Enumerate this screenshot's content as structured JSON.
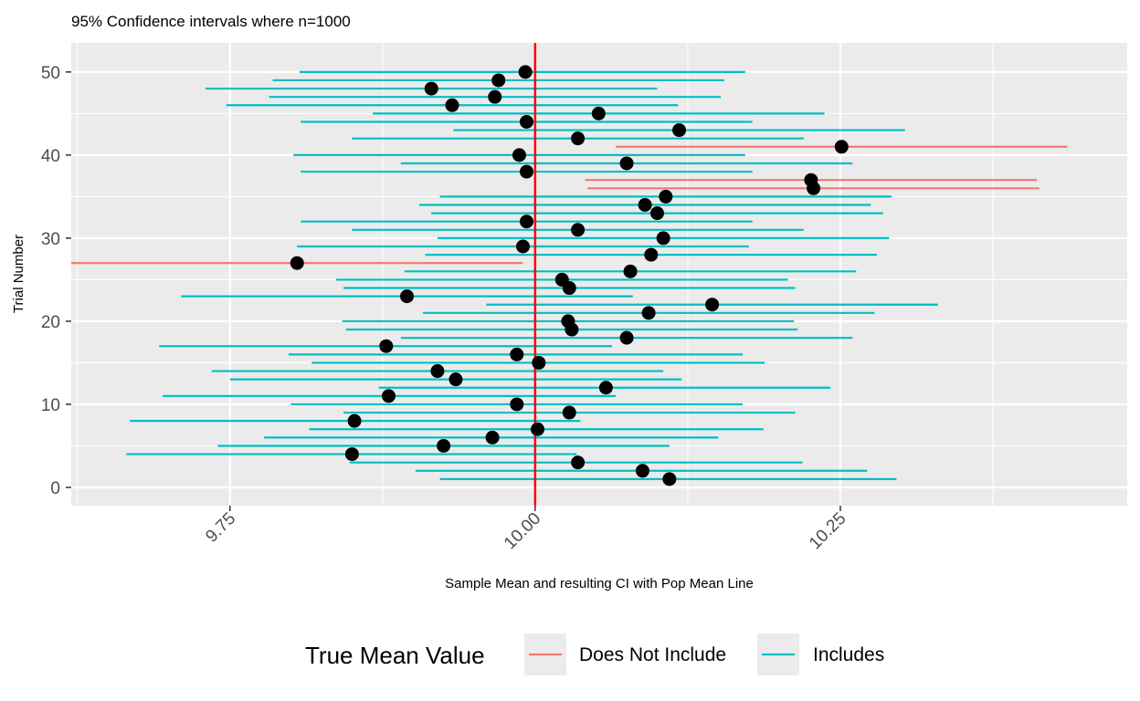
{
  "chart_data": {
    "type": "errorbar-scatter",
    "title": "95% Confidence intervals where n=1000",
    "xlabel": "Sample Mean and resulting CI with Pop Mean Line",
    "ylabel": "Trial Number",
    "xlim": [
      9.62,
      10.485
    ],
    "ylim": [
      -2.2,
      53.5
    ],
    "x_ticks": [
      9.75,
      10.0,
      10.25
    ],
    "x_tick_labels": [
      "9.75",
      "10.00",
      "10.25"
    ],
    "x_minor_ticks": [
      9.625,
      9.875,
      10.125,
      10.375
    ],
    "y_ticks": [
      0,
      10,
      20,
      30,
      40,
      50
    ],
    "y_tick_labels": [
      "0",
      "10",
      "20",
      "30",
      "40",
      "50"
    ],
    "y_minor_ticks": [
      5,
      15,
      25,
      35,
      45
    ],
    "reference_line": {
      "x": 10.0,
      "color": "#ff0000"
    },
    "grid": true,
    "legend": {
      "title": "True Mean Value",
      "position": "bottom",
      "entries": [
        {
          "label": "Does Not Include",
          "color": "#f8766d"
        },
        {
          "label": "Includes",
          "color": "#00bfc4"
        }
      ]
    },
    "series": [
      {
        "trial": 1,
        "mean": 10.11,
        "lower": 9.922,
        "upper": 10.296,
        "includes": true
      },
      {
        "trial": 2,
        "mean": 10.088,
        "lower": 9.902,
        "upper": 10.272,
        "includes": true
      },
      {
        "trial": 3,
        "mean": 10.035,
        "lower": 9.848,
        "upper": 10.219,
        "includes": true
      },
      {
        "trial": 4,
        "mean": 9.85,
        "lower": 9.665,
        "upper": 10.034,
        "includes": true
      },
      {
        "trial": 5,
        "mean": 9.925,
        "lower": 9.74,
        "upper": 10.11,
        "includes": true
      },
      {
        "trial": 6,
        "mean": 9.965,
        "lower": 9.778,
        "upper": 10.15,
        "includes": true
      },
      {
        "trial": 7,
        "mean": 10.002,
        "lower": 9.815,
        "upper": 10.187,
        "includes": true
      },
      {
        "trial": 8,
        "mean": 9.852,
        "lower": 9.668,
        "upper": 10.037,
        "includes": true
      },
      {
        "trial": 9,
        "mean": 10.028,
        "lower": 9.843,
        "upper": 10.213,
        "includes": true
      },
      {
        "trial": 10,
        "mean": 9.985,
        "lower": 9.8,
        "upper": 10.17,
        "includes": true
      },
      {
        "trial": 11,
        "mean": 9.88,
        "lower": 9.695,
        "upper": 10.066,
        "includes": true
      },
      {
        "trial": 12,
        "mean": 10.058,
        "lower": 9.872,
        "upper": 10.242,
        "includes": true
      },
      {
        "trial": 13,
        "mean": 9.935,
        "lower": 9.75,
        "upper": 10.12,
        "includes": true
      },
      {
        "trial": 14,
        "mean": 9.92,
        "lower": 9.735,
        "upper": 10.105,
        "includes": true
      },
      {
        "trial": 15,
        "mean": 10.003,
        "lower": 9.817,
        "upper": 10.188,
        "includes": true
      },
      {
        "trial": 16,
        "mean": 9.985,
        "lower": 9.798,
        "upper": 10.17,
        "includes": true
      },
      {
        "trial": 17,
        "mean": 9.878,
        "lower": 9.692,
        "upper": 10.063,
        "includes": true
      },
      {
        "trial": 18,
        "mean": 10.075,
        "lower": 9.89,
        "upper": 10.26,
        "includes": true
      },
      {
        "trial": 19,
        "mean": 10.03,
        "lower": 9.845,
        "upper": 10.215,
        "includes": true
      },
      {
        "trial": 20,
        "mean": 10.027,
        "lower": 9.842,
        "upper": 10.212,
        "includes": true
      },
      {
        "trial": 21,
        "mean": 10.093,
        "lower": 9.908,
        "upper": 10.278,
        "includes": true
      },
      {
        "trial": 22,
        "mean": 10.145,
        "lower": 9.96,
        "upper": 10.33,
        "includes": true
      },
      {
        "trial": 23,
        "mean": 9.895,
        "lower": 9.71,
        "upper": 10.08,
        "includes": true
      },
      {
        "trial": 24,
        "mean": 10.028,
        "lower": 9.843,
        "upper": 10.213,
        "includes": true
      },
      {
        "trial": 25,
        "mean": 10.022,
        "lower": 9.837,
        "upper": 10.207,
        "includes": true
      },
      {
        "trial": 26,
        "mean": 10.078,
        "lower": 9.893,
        "upper": 10.263,
        "includes": true
      },
      {
        "trial": 27,
        "mean": 9.805,
        "lower": 9.62,
        "upper": 9.99,
        "includes": false
      },
      {
        "trial": 28,
        "mean": 10.095,
        "lower": 9.91,
        "upper": 10.28,
        "includes": true
      },
      {
        "trial": 29,
        "mean": 9.99,
        "lower": 9.805,
        "upper": 10.175,
        "includes": true
      },
      {
        "trial": 30,
        "mean": 10.105,
        "lower": 9.92,
        "upper": 10.29,
        "includes": true
      },
      {
        "trial": 31,
        "mean": 10.035,
        "lower": 9.85,
        "upper": 10.22,
        "includes": true
      },
      {
        "trial": 32,
        "mean": 9.993,
        "lower": 9.808,
        "upper": 10.178,
        "includes": true
      },
      {
        "trial": 33,
        "mean": 10.1,
        "lower": 9.915,
        "upper": 10.285,
        "includes": true
      },
      {
        "trial": 34,
        "mean": 10.09,
        "lower": 9.905,
        "upper": 10.275,
        "includes": true
      },
      {
        "trial": 35,
        "mean": 10.107,
        "lower": 9.922,
        "upper": 10.292,
        "includes": true
      },
      {
        "trial": 36,
        "mean": 10.228,
        "lower": 10.043,
        "upper": 10.413,
        "includes": false
      },
      {
        "trial": 37,
        "mean": 10.226,
        "lower": 10.041,
        "upper": 10.411,
        "includes": false
      },
      {
        "trial": 38,
        "mean": 9.993,
        "lower": 9.808,
        "upper": 10.178,
        "includes": true
      },
      {
        "trial": 39,
        "mean": 10.075,
        "lower": 9.89,
        "upper": 10.26,
        "includes": true
      },
      {
        "trial": 40,
        "mean": 9.987,
        "lower": 9.802,
        "upper": 10.172,
        "includes": true
      },
      {
        "trial": 41,
        "mean": 10.251,
        "lower": 10.066,
        "upper": 10.436,
        "includes": false
      },
      {
        "trial": 42,
        "mean": 10.035,
        "lower": 9.85,
        "upper": 10.22,
        "includes": true
      },
      {
        "trial": 43,
        "mean": 10.118,
        "lower": 9.933,
        "upper": 10.303,
        "includes": true
      },
      {
        "trial": 44,
        "mean": 9.993,
        "lower": 9.808,
        "upper": 10.178,
        "includes": true
      },
      {
        "trial": 45,
        "mean": 10.052,
        "lower": 9.867,
        "upper": 10.237,
        "includes": true
      },
      {
        "trial": 46,
        "mean": 9.932,
        "lower": 9.747,
        "upper": 10.117,
        "includes": true
      },
      {
        "trial": 47,
        "mean": 9.967,
        "lower": 9.782,
        "upper": 10.152,
        "includes": true
      },
      {
        "trial": 48,
        "mean": 9.915,
        "lower": 9.73,
        "upper": 10.1,
        "includes": true
      },
      {
        "trial": 49,
        "mean": 9.97,
        "lower": 9.785,
        "upper": 10.155,
        "includes": true
      },
      {
        "trial": 50,
        "mean": 9.992,
        "lower": 9.807,
        "upper": 10.172,
        "includes": true
      }
    ]
  }
}
